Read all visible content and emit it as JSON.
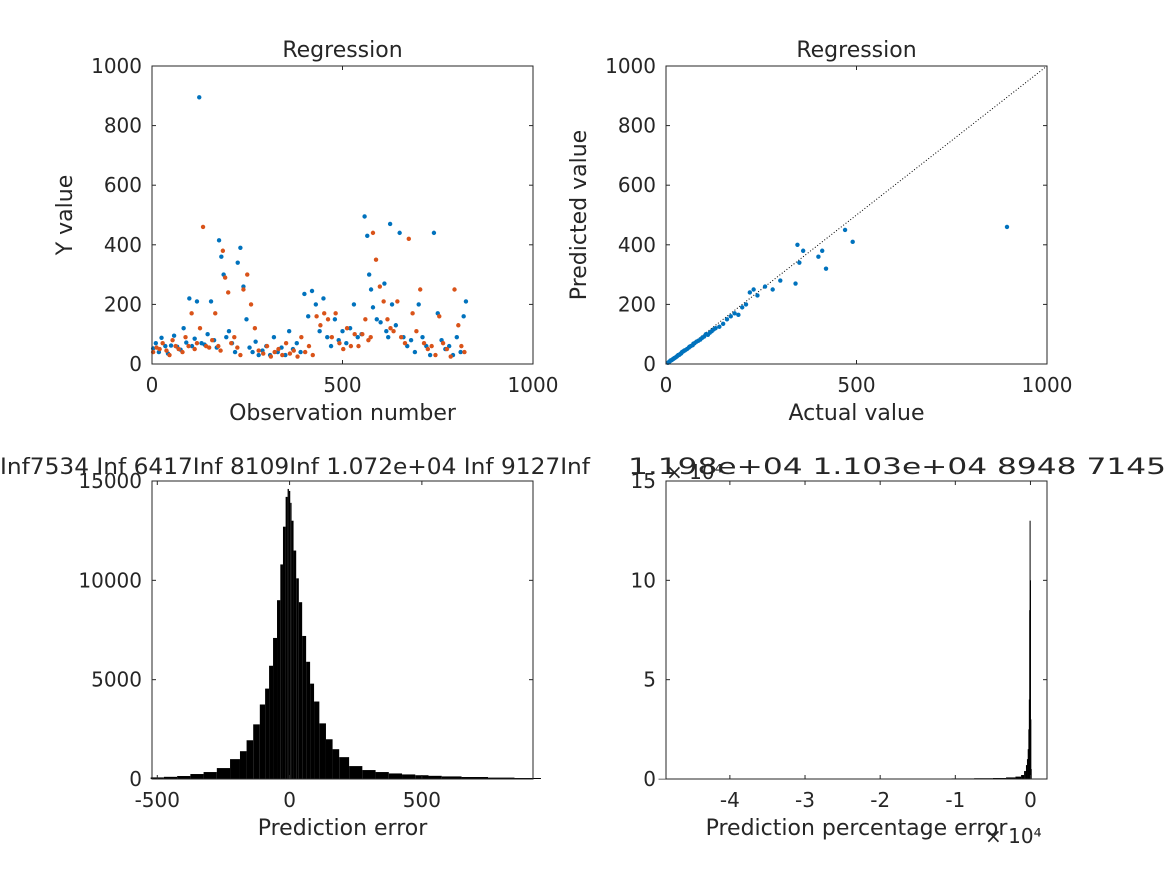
{
  "chart_data": [
    {
      "id": "ax1",
      "type": "scatter",
      "title": "Regression",
      "xlabel": "Observation number",
      "ylabel": "Y value",
      "xlim": [
        0,
        1000
      ],
      "ylim": [
        0,
        1000
      ],
      "xticks": [
        0,
        500,
        1000
      ],
      "yticks": [
        0,
        200,
        400,
        600,
        800,
        1000
      ],
      "grid": false,
      "series_colors": [
        "#0072BD",
        "#D95319"
      ],
      "series": [
        {
          "x": [
            3,
            10,
            18,
            25,
            35,
            42,
            50,
            58,
            66,
            75,
            83,
            90,
            98,
            105,
            112,
            118,
            124,
            130,
            138,
            146,
            155,
            163,
            170,
            176,
            182,
            188,
            195,
            202,
            210,
            218,
            225,
            232,
            240,
            248,
            256,
            264,
            272,
            280,
            290,
            300,
            310,
            320,
            330,
            340,
            350,
            360,
            370,
            380,
            390,
            400,
            410,
            420,
            430,
            440,
            450,
            460,
            470,
            480,
            490,
            500,
            510,
            520,
            530,
            540,
            550,
            558,
            565,
            570,
            575,
            580,
            590,
            600,
            610,
            615,
            620,
            625,
            630,
            640,
            650,
            660,
            670,
            680,
            690,
            700,
            710,
            720,
            730,
            740,
            750,
            760,
            770,
            780,
            790,
            800,
            810,
            818,
            824
          ],
          "y": [
            52,
            70,
            40,
            88,
            60,
            35,
            62,
            95,
            58,
            48,
            120,
            72,
            220,
            60,
            85,
            210,
            895,
            70,
            65,
            100,
            210,
            80,
            55,
            415,
            360,
            300,
            90,
            110,
            70,
            40,
            340,
            390,
            260,
            150,
            55,
            40,
            75,
            30,
            45,
            60,
            30,
            90,
            40,
            55,
            30,
            110,
            50,
            70,
            40,
            235,
            160,
            245,
            200,
            110,
            220,
            90,
            60,
            150,
            80,
            110,
            70,
            120,
            200,
            90,
            100,
            495,
            430,
            300,
            250,
            190,
            150,
            140,
            270,
            110,
            90,
            470,
            200,
            130,
            440,
            90,
            60,
            80,
            40,
            200,
            90,
            60,
            30,
            440,
            170,
            80,
            50,
            60,
            30,
            90,
            40,
            160,
            210
          ]
        },
        {
          "x": [
            3,
            12,
            20,
            28,
            38,
            46,
            54,
            62,
            70,
            80,
            88,
            96,
            104,
            112,
            118,
            126,
            134,
            142,
            150,
            158,
            166,
            174,
            180,
            186,
            192,
            200,
            208,
            216,
            224,
            232,
            240,
            250,
            260,
            270,
            280,
            292,
            302,
            312,
            322,
            332,
            342,
            352,
            362,
            372,
            382,
            392,
            402,
            412,
            422,
            432,
            442,
            452,
            462,
            472,
            482,
            492,
            502,
            512,
            522,
            532,
            542,
            552,
            560,
            568,
            574,
            580,
            588,
            598,
            608,
            618,
            626,
            634,
            644,
            654,
            664,
            674,
            684,
            694,
            704,
            714,
            724,
            734,
            744,
            754,
            764,
            774,
            784,
            794,
            804,
            812,
            820
          ],
          "y": [
            40,
            55,
            50,
            70,
            45,
            30,
            80,
            60,
            50,
            40,
            90,
            60,
            170,
            50,
            70,
            120,
            460,
            60,
            55,
            80,
            170,
            60,
            45,
            380,
            290,
            240,
            70,
            90,
            55,
            30,
            250,
            300,
            200,
            120,
            45,
            35,
            60,
            25,
            40,
            50,
            30,
            70,
            35,
            45,
            25,
            90,
            40,
            60,
            30,
            160,
            130,
            170,
            150,
            90,
            170,
            70,
            50,
            120,
            60,
            100,
            60,
            100,
            150,
            80,
            90,
            440,
            350,
            260,
            210,
            150,
            120,
            110,
            210,
            90,
            70,
            420,
            170,
            110,
            250,
            70,
            50,
            60,
            30,
            160,
            70,
            50,
            25,
            250,
            130,
            60,
            40
          ]
        }
      ]
    },
    {
      "id": "ax2",
      "type": "scatter",
      "title": "Regression",
      "xlabel": "Actual value",
      "ylabel": "Predicted value",
      "xlim": [
        0,
        1000
      ],
      "ylim": [
        0,
        1000
      ],
      "xticks": [
        0,
        500,
        1000
      ],
      "yticks": [
        0,
        200,
        400,
        600,
        800,
        1000
      ],
      "grid": false,
      "reference_line": "dotted y = x",
      "series_colors": [
        "#0072BD"
      ],
      "series": [
        {
          "x": [
            5,
            8,
            10,
            12,
            15,
            18,
            20,
            22,
            25,
            28,
            30,
            32,
            35,
            38,
            40,
            42,
            45,
            48,
            50,
            55,
            60,
            62,
            65,
            70,
            72,
            75,
            80,
            85,
            90,
            95,
            100,
            105,
            110,
            115,
            120,
            125,
            130,
            140,
            150,
            160,
            170,
            180,
            190,
            200,
            210,
            220,
            230,
            240,
            260,
            280,
            300,
            340,
            345,
            350,
            360,
            400,
            410,
            420,
            470,
            490,
            895
          ],
          "y": [
            4,
            7,
            9,
            12,
            13,
            16,
            18,
            20,
            22,
            25,
            27,
            30,
            31,
            34,
            36,
            40,
            42,
            45,
            46,
            50,
            55,
            58,
            60,
            63,
            68,
            70,
            75,
            78,
            82,
            88,
            92,
            100,
            98,
            105,
            110,
            116,
            120,
            125,
            135,
            150,
            160,
            170,
            165,
            190,
            200,
            240,
            250,
            230,
            260,
            250,
            280,
            270,
            400,
            340,
            380,
            360,
            380,
            320,
            450,
            410,
            460
          ]
        }
      ]
    },
    {
      "id": "ax3",
      "type": "bar",
      "xlabel": "Prediction error",
      "xlim": [
        -520,
        920
      ],
      "ylim": [
        0,
        15000
      ],
      "xticks": [
        -500,
        0,
        500
      ],
      "yticks": [
        0,
        5000,
        10000,
        15000
      ],
      "bar_color": "#000000",
      "x": [
        -500,
        -450,
        -400,
        -350,
        -300,
        -250,
        -200,
        -175,
        -150,
        -125,
        -100,
        -85,
        -70,
        -55,
        -40,
        -30,
        -20,
        -10,
        -5,
        0,
        5,
        10,
        20,
        30,
        40,
        55,
        70,
        85,
        100,
        125,
        150,
        175,
        200,
        250,
        300,
        350,
        400,
        450,
        500,
        550,
        600,
        700,
        800,
        900
      ],
      "values": [
        80,
        110,
        150,
        250,
        350,
        550,
        1000,
        1400,
        1950,
        2750,
        3750,
        4550,
        5700,
        7100,
        9000,
        10800,
        12700,
        14200,
        14600,
        14500,
        13900,
        13000,
        11500,
        10100,
        8900,
        7200,
        5900,
        4800,
        3900,
        2800,
        2000,
        1500,
        1100,
        650,
        450,
        350,
        280,
        230,
        190,
        160,
        130,
        100,
        70,
        50
      ],
      "overlay_text": "Inf7534  Inf  6417Inf        8109Inf    1.072e+04  Inf    9127Inf"
    },
    {
      "id": "ax4",
      "type": "bar",
      "xlabel": "Prediction percentage error",
      "xlim": [
        -4.85,
        0.22
      ],
      "ylim": [
        0,
        15
      ],
      "xticks": [
        -4,
        -3,
        -2,
        -1,
        0
      ],
      "yticks": [
        0,
        5,
        10,
        15
      ],
      "exponent_label": "× 10⁴",
      "bar_color": "#000000",
      "x": [
        -4.8,
        -4.5,
        -4.2,
        -3.9,
        -3.6,
        -3.3,
        -3.0,
        -2.7,
        -2.4,
        -2.1,
        -1.8,
        -1.5,
        -1.2,
        -0.9,
        -0.6,
        -0.4,
        -0.25,
        -0.15,
        -0.1,
        -0.07,
        -0.05,
        -0.04,
        -0.03,
        -0.02,
        -0.015,
        -0.01,
        -0.005,
        0,
        0.005,
        0.01
      ],
      "values": [
        0.01,
        0.01,
        0.01,
        0.01,
        0.01,
        0.01,
        0.01,
        0.01,
        0.01,
        0.02,
        0.02,
        0.02,
        0.02,
        0.03,
        0.04,
        0.05,
        0.08,
        0.12,
        0.2,
        0.4,
        0.7,
        1.0,
        1.5,
        2.5,
        4.0,
        8.5,
        13.0,
        10.0,
        3.0,
        0.5
      ],
      "overlay_text": "1.198e+04    1.103e+04          8948         7145"
    }
  ]
}
